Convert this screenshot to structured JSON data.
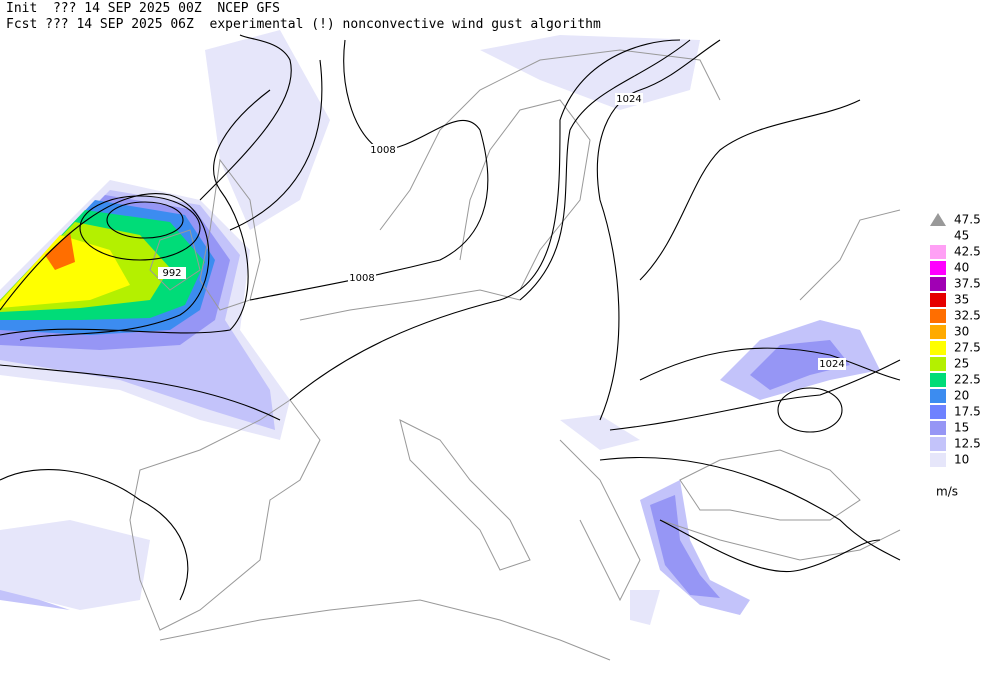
{
  "header": {
    "line1": "Init  ??? 14 SEP 2025 00Z  NCEP GFS",
    "line2": "Fcst ??? 14 SEP 2025 06Z  experimental (!) nonconvective wind gust algorithm"
  },
  "isobar_labels": [
    "1008",
    "1008",
    "992",
    "1024",
    "1024"
  ],
  "legend": {
    "top_label": 47.5,
    "unit": "m/s",
    "levels": [
      {
        "value": 45
      },
      {
        "value": 42.5,
        "color": "#ffa0f5"
      },
      {
        "value": 40,
        "color": "#ff00ff"
      },
      {
        "value": 37.5,
        "color": "#a000b4"
      },
      {
        "value": 35,
        "color": "#e60000"
      },
      {
        "value": 32.5,
        "color": "#ff6e00"
      },
      {
        "value": 30,
        "color": "#ffaa00"
      },
      {
        "value": 27.5,
        "color": "#ffff00"
      },
      {
        "value": 25,
        "color": "#b4f000"
      },
      {
        "value": 22.5,
        "color": "#00dc78"
      },
      {
        "value": 20,
        "color": "#3c8cf0"
      },
      {
        "value": 17.5,
        "color": "#6e82ff"
      },
      {
        "value": 15,
        "color": "#9696f5"
      },
      {
        "value": 12.5,
        "color": "#c3c3fa"
      },
      {
        "value": 10,
        "color": "#e6e6fa"
      }
    ]
  }
}
